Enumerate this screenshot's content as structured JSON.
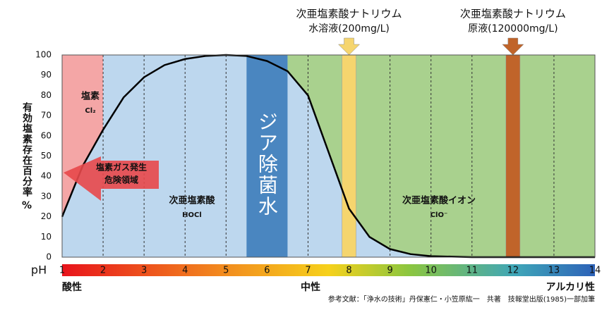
{
  "chart_data": {
    "type": "area",
    "ylabel": "有効塩素存在百分率",
    "ylabel_unit": "%",
    "xlabel": "pH",
    "x": [
      1,
      1.5,
      2,
      2.5,
      3,
      3.5,
      4,
      4.5,
      5,
      5.5,
      6,
      6.5,
      7,
      7.5,
      8,
      8.5,
      9,
      9.5,
      10,
      11,
      12,
      13,
      14
    ],
    "series": [
      {
        "name": "次亜塩素酸",
        "color": "#000000",
        "values": [
          20,
          45,
          63,
          79,
          89,
          95,
          98,
          99.5,
          100,
          99.5,
          97,
          92,
          80,
          52,
          24,
          10,
          4,
          1.5,
          0.5,
          0,
          0,
          0,
          0
        ]
      }
    ],
    "xlim": [
      1,
      14
    ],
    "xticks": [
      1,
      2,
      3,
      4,
      5,
      6,
      7,
      8,
      9,
      10,
      11,
      12,
      13,
      14
    ],
    "ylim": [
      0,
      100
    ],
    "yticks": [
      0,
      10,
      20,
      30,
      40,
      50,
      60,
      70,
      80,
      90,
      100
    ],
    "grid": true,
    "regions": [
      {
        "label": "塩素",
        "sublabel": "Cl₂",
        "from": 1,
        "to": 2,
        "color": "#f4a6a6"
      },
      {
        "label": "次亜塩素酸",
        "sublabel": "HOCl",
        "from": 2,
        "to": 6.5,
        "color": "#bdd7ee"
      },
      {
        "label": "次亜塩素酸イオン",
        "sublabel": "ClO⁻",
        "from": 6.5,
        "to": 14,
        "color": "#a9d18e"
      }
    ],
    "band": {
      "label": "ジア除菌水",
      "from": 5.5,
      "to": 6.5,
      "color": "#4a86c0"
    },
    "markers": [
      {
        "x": 8,
        "label": "次亜塩素酸ナトリウム",
        "sublabel": "水溶液(200mg/L)",
        "color": "#f5d56e"
      },
      {
        "x": 12,
        "label": "次亜塩素酸ナトリウム",
        "sublabel": "原液(120000mg/L)",
        "color": "#c0642a"
      }
    ],
    "warning": [
      "塩素ガス発生",
      "危険領域"
    ],
    "scale_labels": [
      "酸性",
      "中性",
      "アルカリ性"
    ],
    "source": "参考文献：「浄水の技術」丹保憲仁・小笠原紘一　共著　技報堂出版(1985)一部加筆"
  }
}
